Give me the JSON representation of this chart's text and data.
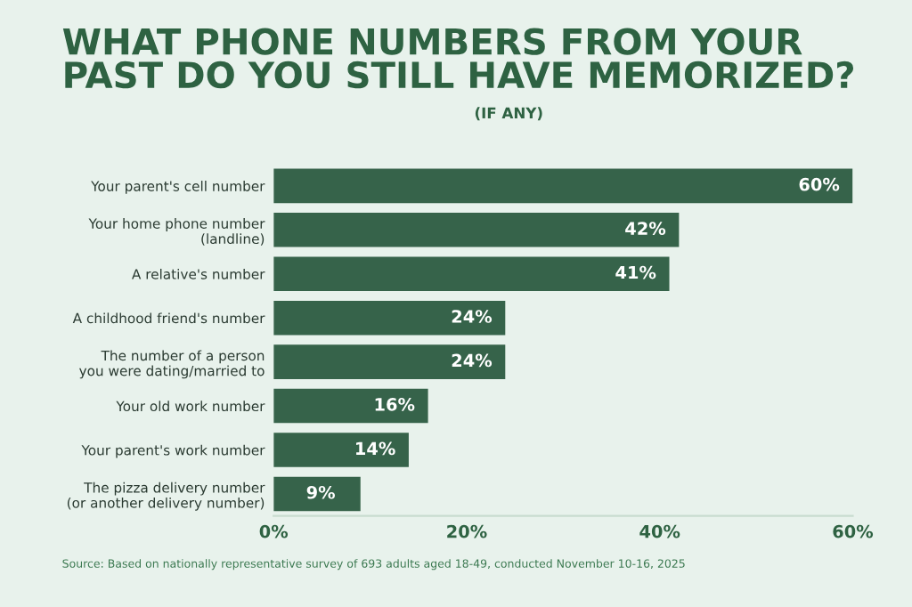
{
  "chart_data": {
    "type": "bar",
    "orientation": "horizontal",
    "title": "WHAT PHONE NUMBERS FROM YOUR PAST DO YOU STILL HAVE MEMORIZED?",
    "subtitle": "(IF ANY)",
    "categories": [
      "Your parent's cell number",
      "Your home phone number\n(landline)",
      "A relative's number",
      "A childhood friend's number",
      "The number of a person\nyou were dating/married to",
      "Your old work number",
      "Your parent's work number",
      "The pizza delivery number\n(or another delivery number)"
    ],
    "values": [
      60,
      42,
      41,
      24,
      24,
      16,
      14,
      9
    ],
    "value_labels": [
      "60%",
      "42%",
      "41%",
      "24%",
      "24%",
      "16%",
      "14%",
      "9%"
    ],
    "color": "#36634a",
    "xlim": [
      0,
      60
    ],
    "xticks": [
      {
        "value": 0,
        "label": "0%"
      },
      {
        "value": 20,
        "label": "20%"
      },
      {
        "value": 40,
        "label": "40%"
      },
      {
        "value": 60,
        "label": "60%"
      }
    ],
    "grid": false,
    "legend": false,
    "annotations": [
      "Source: Based on nationally representative survey of 693 adults aged 18-49, conducted November 10-16, 2025"
    ]
  }
}
